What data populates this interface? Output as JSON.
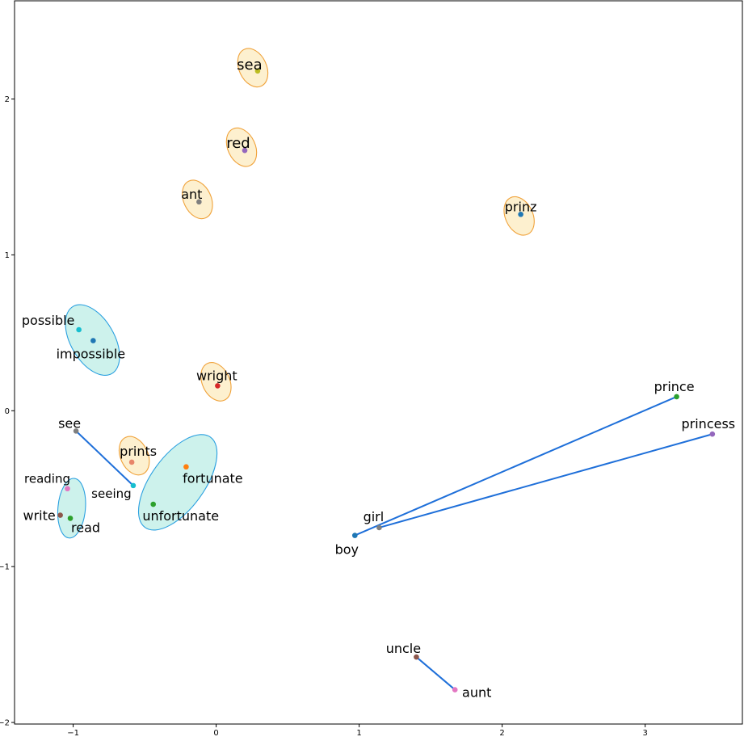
{
  "chart_data": {
    "type": "scatter",
    "title": "",
    "xlabel": "",
    "ylabel": "",
    "xlim": [
      -1.41,
      3.68
    ],
    "ylim": [
      -2.01,
      2.63
    ],
    "grid": false,
    "x_ticks": [
      {
        "value": -1,
        "label": "−1"
      },
      {
        "value": 0,
        "label": "0"
      },
      {
        "value": 1,
        "label": "1"
      },
      {
        "value": 2,
        "label": "2"
      },
      {
        "value": 3,
        "label": "3"
      }
    ],
    "y_ticks": [
      {
        "value": 2,
        "label": "2"
      },
      {
        "value": 1,
        "label": "1"
      },
      {
        "value": 0,
        "label": "0"
      },
      {
        "value": -1,
        "label": "−1"
      },
      {
        "value": -2,
        "label": "−2"
      }
    ],
    "points": [
      {
        "word": "sea",
        "x": 0.29,
        "y": 2.18,
        "color": "#bcbd22",
        "label_size": "large"
      },
      {
        "word": "red",
        "x": 0.2,
        "y": 1.67,
        "color": "#9467bd",
        "label_size": "large"
      },
      {
        "word": "ant",
        "x": -0.12,
        "y": 1.34,
        "color": "#7f7f7f",
        "label_size": "medium"
      },
      {
        "word": "prinz",
        "x": 2.13,
        "y": 1.26,
        "color": "#1f77b4",
        "label_size": "medium"
      },
      {
        "word": "possible",
        "x": -0.96,
        "y": 0.52,
        "color": "#17becf",
        "label_size": "medium"
      },
      {
        "word": "impossible",
        "x": -0.86,
        "y": 0.45,
        "color": "#1f77b4",
        "label_size": "medium"
      },
      {
        "word": "wright",
        "x": 0.01,
        "y": 0.16,
        "color": "#d62728",
        "label_size": "medium"
      },
      {
        "word": "see",
        "x": -0.98,
        "y": -0.13,
        "color": "#7f7f7f",
        "label_size": "medium"
      },
      {
        "word": "prints",
        "x": -0.59,
        "y": -0.33,
        "color": "#e8856a",
        "label_size": "medium"
      },
      {
        "word": "fortunate",
        "x": -0.21,
        "y": -0.36,
        "color": "#ff7f0e",
        "label_size": "medium"
      },
      {
        "word": "seeing",
        "x": -0.58,
        "y": -0.48,
        "color": "#17becf",
        "label_size": "small"
      },
      {
        "word": "reading",
        "x": -1.04,
        "y": -0.5,
        "color": "#e377c2",
        "label_size": "small"
      },
      {
        "word": "unfortunate",
        "x": -0.44,
        "y": -0.6,
        "color": "#2ca02c",
        "label_size": "medium"
      },
      {
        "word": "write",
        "x": -1.09,
        "y": -0.67,
        "color": "#8c564b",
        "label_size": "medium"
      },
      {
        "word": "read",
        "x": -1.02,
        "y": -0.69,
        "color": "#2ca02c",
        "label_size": "medium"
      },
      {
        "word": "prince",
        "x": 3.22,
        "y": 0.09,
        "color": "#2ca02c",
        "label_size": "medium"
      },
      {
        "word": "princess",
        "x": 3.47,
        "y": -0.15,
        "color": "#9467bd",
        "label_size": "medium"
      },
      {
        "word": "girl",
        "x": 1.14,
        "y": -0.75,
        "color": "#7f7f7f",
        "label_size": "medium"
      },
      {
        "word": "boy",
        "x": 0.97,
        "y": -0.8,
        "color": "#1f77b4",
        "label_size": "medium"
      },
      {
        "word": "uncle",
        "x": 1.4,
        "y": -1.58,
        "color": "#8c564b",
        "label_size": "medium"
      },
      {
        "word": "aunt",
        "x": 1.67,
        "y": -1.79,
        "color": "#e377c2",
        "label_size": "medium"
      }
    ],
    "connections": [
      {
        "from": "see",
        "to": "seeing"
      },
      {
        "from": "boy",
        "to": "prince"
      },
      {
        "from": "girl",
        "to": "princess"
      },
      {
        "from": "uncle",
        "to": "aunt"
      }
    ],
    "clusters": [
      {
        "kind": "blue",
        "members": [
          "possible",
          "impossible"
        ]
      },
      {
        "kind": "blue",
        "members": [
          "reading",
          "write",
          "read"
        ]
      },
      {
        "kind": "blue",
        "members": [
          "fortunate",
          "unfortunate"
        ]
      },
      {
        "kind": "orange",
        "members": [
          "sea"
        ]
      },
      {
        "kind": "orange",
        "members": [
          "red"
        ]
      },
      {
        "kind": "orange",
        "members": [
          "ant"
        ]
      },
      {
        "kind": "orange",
        "members": [
          "prinz"
        ]
      },
      {
        "kind": "orange",
        "members": [
          "wright"
        ]
      },
      {
        "kind": "orange",
        "members": [
          "prints"
        ]
      }
    ],
    "style": {
      "connection_color": "#1e6fd9",
      "blue_fill": "#cdf2ec",
      "blue_edge": "#2aa0e0",
      "orange_fill": "#fdf0cf",
      "orange_edge": "#f0a23a"
    }
  }
}
